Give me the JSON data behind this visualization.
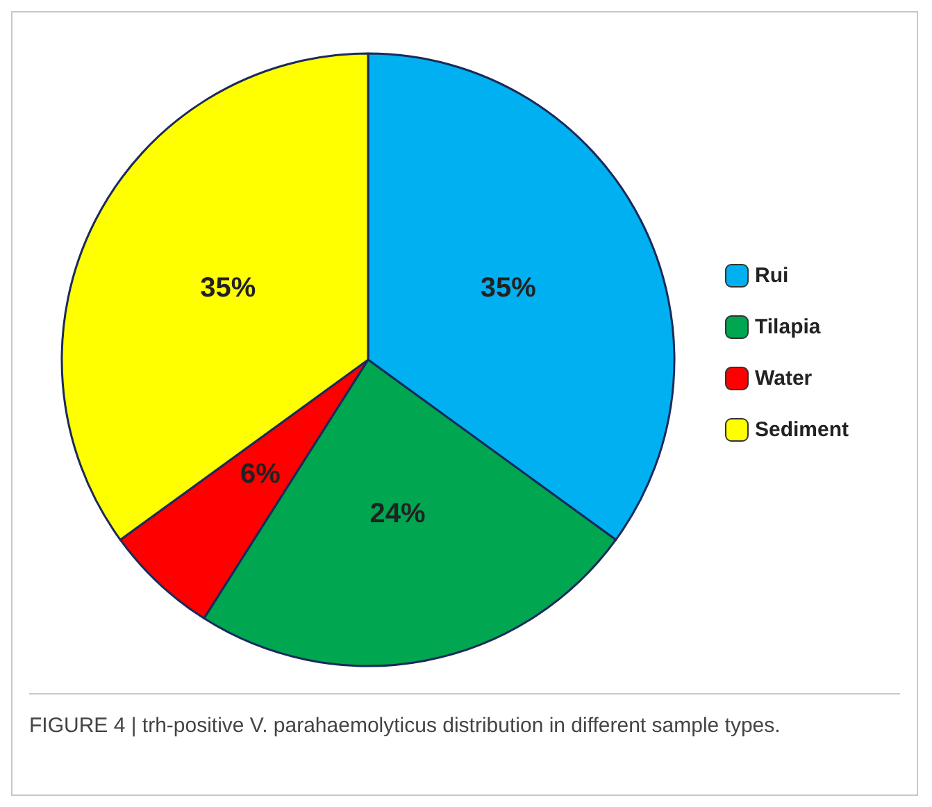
{
  "chart_data": {
    "type": "pie",
    "categories": [
      "Rui",
      "Tilapia",
      "Water",
      "Sediment"
    ],
    "values": [
      35,
      24,
      6,
      35
    ],
    "colors": [
      "#00b0f0",
      "#00a650",
      "#ff0000",
      "#ffff00"
    ],
    "value_labels": [
      "35%",
      "24%",
      "6%",
      "35%"
    ],
    "legend": "right",
    "annotations": [
      "FIGURE 4 | trh-positive V. parahaemolyticus distribution in different sample types."
    ]
  }
}
